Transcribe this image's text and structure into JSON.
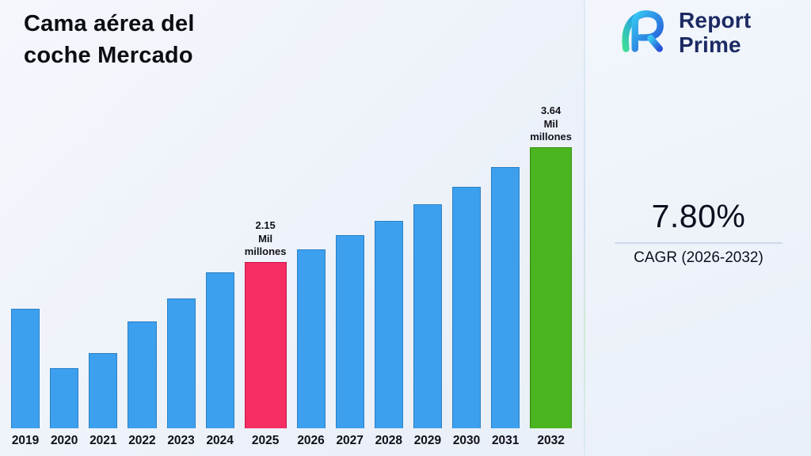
{
  "header": {
    "title_line1": "Cama aérea del",
    "title_line2": "coche Mercado"
  },
  "logo": {
    "line1": "Report",
    "line2": "Prime",
    "brand_color": "#1c2a63"
  },
  "kpi": {
    "value": "7.80%",
    "label": "CAGR (2026-2032)"
  },
  "chart_data": {
    "type": "bar",
    "title": "Cama aérea del coche Mercado",
    "unit": "Mil millones",
    "categories": [
      "2019",
      "2020",
      "2021",
      "2022",
      "2023",
      "2024",
      "2025",
      "2026",
      "2027",
      "2028",
      "2029",
      "2030",
      "2031",
      "2032"
    ],
    "values": [
      1.55,
      0.78,
      0.97,
      1.38,
      1.68,
      2.02,
      2.15,
      2.32,
      2.5,
      2.69,
      2.9,
      3.13,
      3.38,
      3.64
    ],
    "ylim": [
      0,
      3.64
    ],
    "grid": false,
    "legend": false,
    "bar_color": "#3da0ee",
    "bar_border": "#2a81c6",
    "highlights": {
      "2025": {
        "color": "#f72e63",
        "border": "#c41746"
      },
      "2032": {
        "color": "#4ab51e",
        "border": "#348c12"
      }
    },
    "annotations": [
      {
        "category": "2025",
        "lines": [
          "2.15",
          "Mil",
          "millones"
        ]
      },
      {
        "category": "2032",
        "lines": [
          "3.64",
          "Mil",
          "millones"
        ]
      }
    ]
  }
}
